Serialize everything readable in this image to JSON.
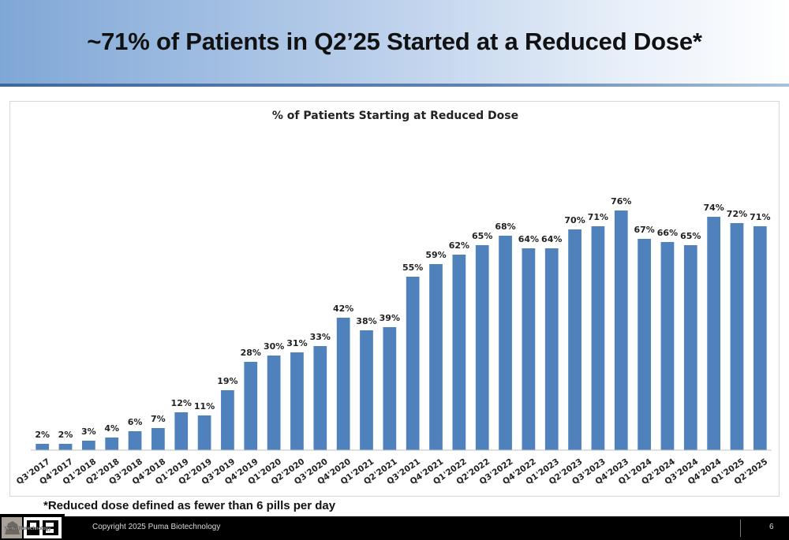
{
  "slide": {
    "title": "~71% of Patients in Q2’25 Started at a Reduced Dose*",
    "footnote": "*Reduced dose defined as fewer than 6 pills per day",
    "copyright": "Copyright 2025 Puma Biotechnology",
    "page_number": "6",
    "logo_text": "Puma Biotechnology",
    "colors": {
      "bar": "#4f81bd",
      "header_accent": "#3e6a9a",
      "footer": "#000000"
    }
  },
  "chart_data": {
    "type": "bar",
    "title": "% of Patients Starting at Reduced Dose",
    "xlabel": "",
    "ylabel": "",
    "ylim": [
      0,
      80
    ],
    "grid": false,
    "categories": [
      "Q3'2017",
      "Q4'2017",
      "Q1'2018",
      "Q2'2018",
      "Q3'2018",
      "Q4'2018",
      "Q1'2019",
      "Q2'2019",
      "Q3'2019",
      "Q4'2019",
      "Q1'2020",
      "Q2'2020",
      "Q3'2020",
      "Q4'2020",
      "Q1'2021",
      "Q2'2021",
      "Q3'2021",
      "Q4'2021",
      "Q1'2022",
      "Q2'2022",
      "Q3'2022",
      "Q4'2022",
      "Q1'2023",
      "Q2'2023",
      "Q3'2023",
      "Q4'2023",
      "Q1'2024",
      "Q2'2024",
      "Q3'2024",
      "Q4'2024",
      "Q1'2025",
      "Q2'2025"
    ],
    "values": [
      2,
      2,
      3,
      4,
      6,
      7,
      12,
      11,
      19,
      28,
      30,
      31,
      33,
      42,
      38,
      39,
      55,
      59,
      62,
      65,
      68,
      64,
      64,
      70,
      71,
      76,
      67,
      66,
      65,
      74,
      72,
      71
    ],
    "data_labels": [
      "2%",
      "2%",
      "3%",
      "4%",
      "6%",
      "7%",
      "12%",
      "11%",
      "19%",
      "28%",
      "30%",
      "31%",
      "33%",
      "42%",
      "38%",
      "39%",
      "55%",
      "59%",
      "62%",
      "65%",
      "68%",
      "64%",
      "64%",
      "70%",
      "71%",
      "76%",
      "67%",
      "66%",
      "65%",
      "74%",
      "72%",
      "71%"
    ]
  }
}
